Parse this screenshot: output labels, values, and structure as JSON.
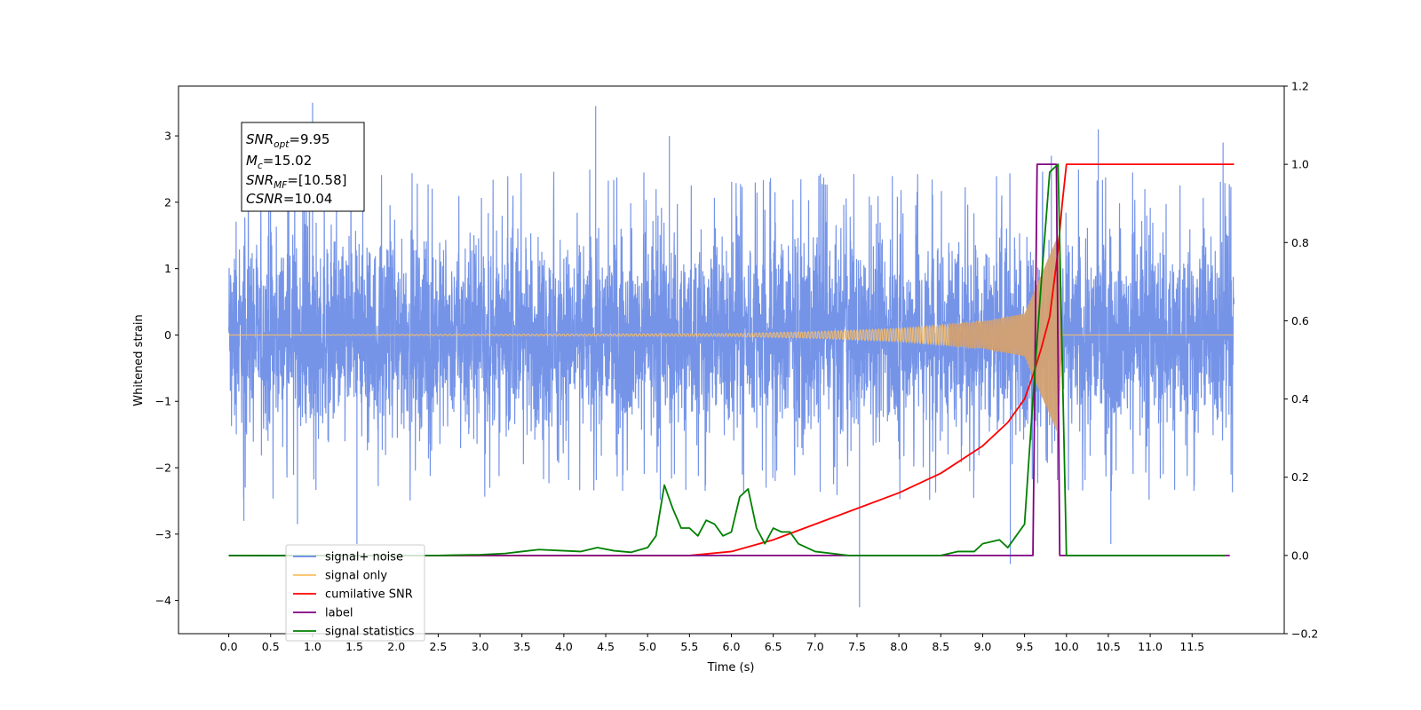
{
  "chart_data": {
    "type": "line",
    "xlabel": "Time (s)",
    "ylabel": "Whitened strain",
    "xlim": [
      -0.6,
      12.6
    ],
    "ylim": [
      -4.5,
      3.75
    ],
    "y2lim": [
      -0.2,
      1.2
    ],
    "x_ticks": [
      "0.0",
      "0.5",
      "1.0",
      "1.5",
      "2.0",
      "2.5",
      "3.0",
      "3.5",
      "4.0",
      "4.5",
      "5.0",
      "5.5",
      "6.0",
      "6.5",
      "7.0",
      "7.5",
      "8.0",
      "8.5",
      "9.0",
      "9.5",
      "10.0",
      "10.5",
      "11.0",
      "11.5"
    ],
    "y_ticks": [
      "−4",
      "−3",
      "−2",
      "−1",
      "0",
      "1",
      "2",
      "3"
    ],
    "y2_ticks": [
      "−0.2",
      "0.0",
      "0.2",
      "0.4",
      "0.6",
      "0.8",
      "1.0",
      "1.2"
    ],
    "grid": false,
    "legend_position": "lower-left",
    "annotation": {
      "snr_opt": {
        "base": "SNR",
        "sub": "opt",
        "value": "=9.95"
      },
      "mc": {
        "base": "M",
        "sub": "c",
        "value": "=15.02"
      },
      "snr_mf": {
        "base": "SNR",
        "sub": "MF",
        "value": "=[10.58]"
      },
      "csnr": {
        "base": "CSNR",
        "value": "=10.04"
      }
    },
    "series": [
      {
        "name": "signal+ noise",
        "axis": "left",
        "color": "#6688e6",
        "kind": "noise",
        "x_range": [
          0.0,
          12.0
        ],
        "band": [
          -1.2,
          1.2
        ],
        "envelope": [
          -2.5,
          2.5
        ],
        "spikes": [
          {
            "x": 1.0,
            "y": 3.5
          },
          {
            "x": 4.38,
            "y": 3.45
          },
          {
            "x": 7.53,
            "y": -4.1
          },
          {
            "x": 0.18,
            "y": -2.8
          },
          {
            "x": 0.82,
            "y": -2.85
          },
          {
            "x": 1.53,
            "y": -3.15
          },
          {
            "x": 9.33,
            "y": -3.45
          },
          {
            "x": 10.53,
            "y": -3.15
          },
          {
            "x": 5.26,
            "y": 3.0
          },
          {
            "x": 9.82,
            "y": 2.7
          },
          {
            "x": 10.38,
            "y": 3.1
          },
          {
            "x": 11.87,
            "y": 2.9
          }
        ]
      },
      {
        "name": "signal only",
        "axis": "left",
        "color": "#ffbf60",
        "kind": "chirp",
        "x_range": [
          0.0,
          12.0
        ],
        "merger_time": 9.95,
        "amplitude_points": [
          [
            0.0,
            0.0
          ],
          [
            6.0,
            0.02
          ],
          [
            7.0,
            0.05
          ],
          [
            8.0,
            0.1
          ],
          [
            9.0,
            0.2
          ],
          [
            9.5,
            0.32
          ],
          [
            9.9,
            1.5
          ],
          [
            9.95,
            0.0
          ]
        ]
      },
      {
        "name": "cumilative SNR",
        "axis": "right",
        "color": "#ff0000",
        "x": [
          0.0,
          5.5,
          6.0,
          6.5,
          7.0,
          7.5,
          8.0,
          8.5,
          9.0,
          9.3,
          9.5,
          9.6,
          9.7,
          9.8,
          9.9,
          9.95,
          10.0,
          12.0
        ],
        "values": [
          0.0,
          0.0,
          0.01,
          0.04,
          0.08,
          0.12,
          0.16,
          0.21,
          0.28,
          0.34,
          0.4,
          0.46,
          0.53,
          0.61,
          0.78,
          0.9,
          1.0,
          1.0
        ]
      },
      {
        "name": "label",
        "axis": "right",
        "color": "#800080",
        "x": [
          0.0,
          9.6,
          9.65,
          9.88,
          9.92,
          11.95
        ],
        "values": [
          0.0,
          0.0,
          1.0,
          1.0,
          0.0,
          0.0
        ]
      },
      {
        "name": "signal statistics",
        "axis": "right",
        "color": "#008000",
        "x": [
          0.0,
          0.5,
          1.0,
          1.5,
          2.0,
          2.5,
          3.0,
          3.3,
          3.5,
          3.7,
          4.0,
          4.2,
          4.4,
          4.6,
          4.8,
          5.0,
          5.1,
          5.2,
          5.3,
          5.4,
          5.5,
          5.6,
          5.7,
          5.8,
          5.9,
          6.0,
          6.1,
          6.2,
          6.3,
          6.4,
          6.5,
          6.6,
          6.7,
          6.8,
          6.9,
          7.0,
          7.2,
          7.4,
          7.6,
          8.0,
          8.5,
          8.7,
          8.9,
          9.0,
          9.2,
          9.3,
          9.4,
          9.5,
          9.6,
          9.7,
          9.8,
          9.9,
          10.0,
          10.2,
          11.9
        ],
        "values": [
          0.0,
          -0.0005,
          0.0,
          0.0,
          0.0,
          0.0,
          0.002,
          0.005,
          0.01,
          0.015,
          0.012,
          0.01,
          0.02,
          0.012,
          0.008,
          0.02,
          0.05,
          0.18,
          0.12,
          0.07,
          0.07,
          0.05,
          0.09,
          0.08,
          0.05,
          0.06,
          0.15,
          0.17,
          0.07,
          0.03,
          0.07,
          0.06,
          0.06,
          0.03,
          0.02,
          0.01,
          0.005,
          0.0,
          0.0,
          0.0,
          0.0,
          0.01,
          0.01,
          0.03,
          0.04,
          0.02,
          0.05,
          0.08,
          0.4,
          0.7,
          0.98,
          1.0,
          0.0,
          0.0,
          0.0
        ]
      }
    ]
  }
}
